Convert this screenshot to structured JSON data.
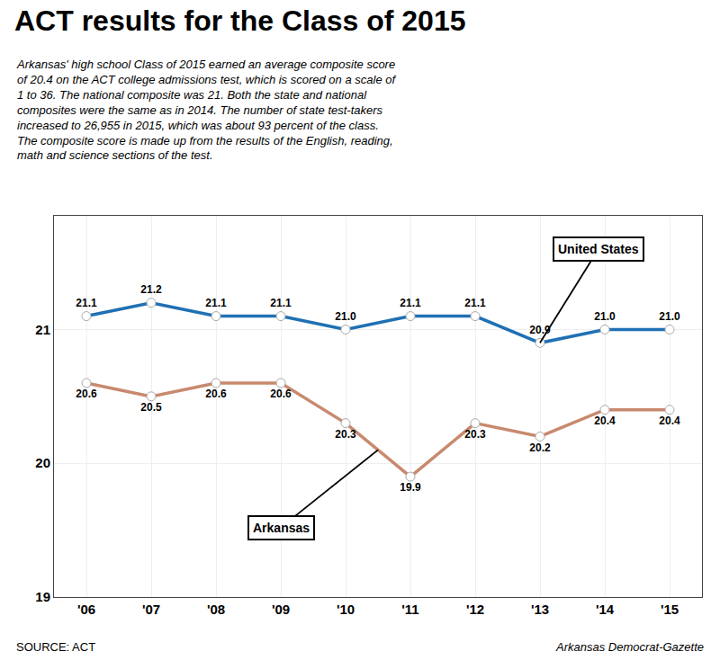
{
  "chart_data": {
    "type": "line",
    "title": "ACT results for the Class of 2015",
    "subtitle": [
      "Arkansas' high school Class of 2015 earned an average composite score",
      "of 20.4 on the ACT college admissions test, which is scored on a scale of",
      "1 to 36. The national composite was 21. Both the state and national",
      "composites were the same as in 2014. The number of state test-takers",
      "increased to 26,955 in 2015, which was about 93 percent of the class.",
      "The composite score is made up from the results of the English, reading,",
      "math and science sections of the test."
    ],
    "categories": [
      "'06",
      "'07",
      "'08",
      "'09",
      "'10",
      "'11",
      "'12",
      "'13",
      "'14",
      "'15"
    ],
    "series": [
      {
        "name": "United States",
        "color": "#2070b4",
        "marker": "circle",
        "line_style": "solid",
        "values": [
          21.1,
          21.2,
          21.1,
          21.1,
          21.0,
          21.1,
          21.1,
          20.9,
          21.0,
          21.0
        ],
        "value_labels": [
          "21.1",
          "21.2",
          "21.1",
          "21.1",
          "21.0",
          "21.1",
          "21.1",
          "20.9",
          "21.0",
          "21.0"
        ]
      },
      {
        "name": "Arkansas",
        "color": "#c8896e",
        "marker": "circle",
        "line_style": "solid",
        "values": [
          20.6,
          20.5,
          20.6,
          20.6,
          20.3,
          19.9,
          20.3,
          20.2,
          20.4,
          20.4
        ],
        "value_labels": [
          "20.6",
          "20.5",
          "20.6",
          "20.6",
          "20.3",
          "19.9",
          "20.3",
          "20.2",
          "20.4",
          "20.4"
        ]
      }
    ],
    "ylim": [
      19,
      21.85
    ],
    "yticks": [
      19,
      20,
      21
    ],
    "grid": true,
    "data_labels": true,
    "source": "SOURCE: ACT",
    "credit": "Arkansas Democrat-Gazette"
  }
}
